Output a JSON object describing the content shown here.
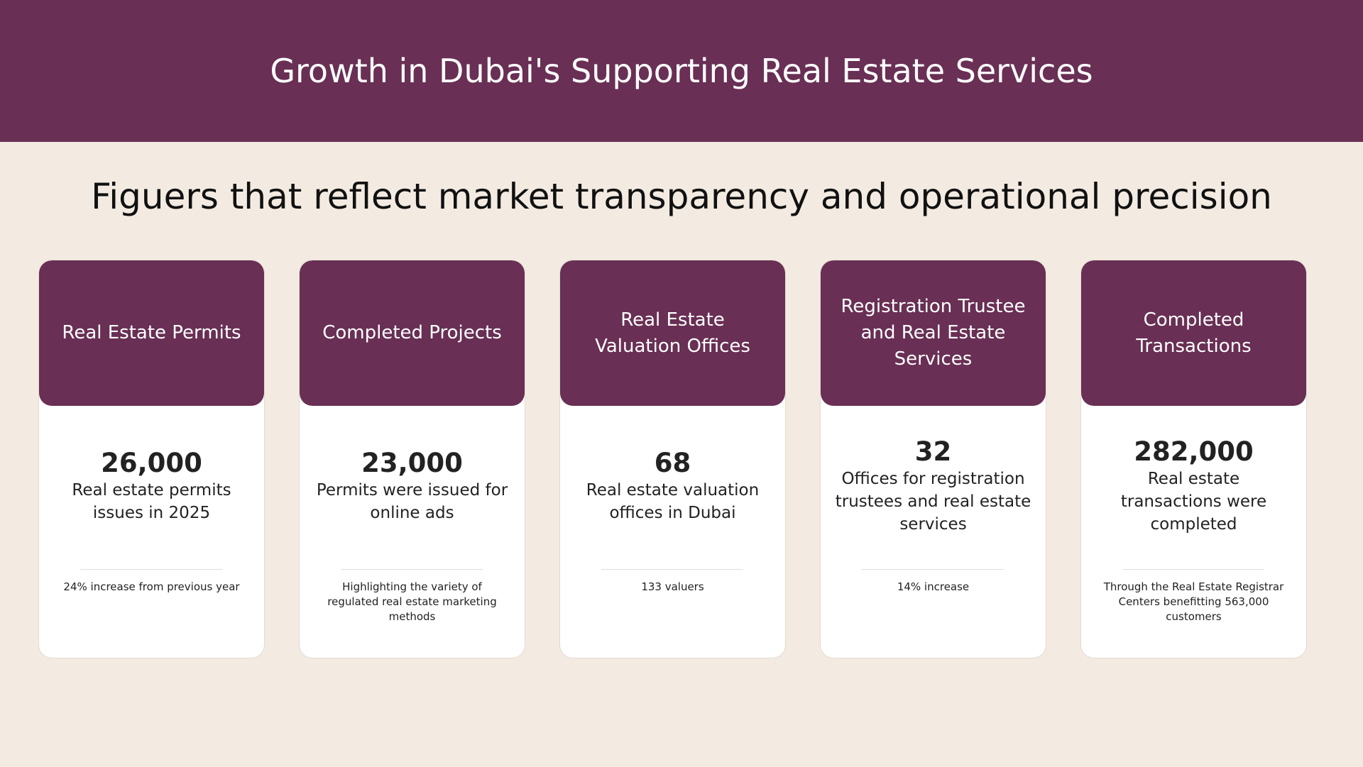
{
  "header": {
    "title": "Growth in Dubai's Supporting Real Estate Services"
  },
  "subtitle": "Figuers that reflect market transparency and operational precision",
  "cards": [
    {
      "title": "Real Estate Permits",
      "value": "26,000",
      "description": "Real estate permits issues in 2025",
      "note": "24% increase from previous year"
    },
    {
      "title": "Completed Projects",
      "value": "23,000",
      "description": "Permits were issued for online ads",
      "note": "Highlighting the variety of regulated real estate marketing methods"
    },
    {
      "title": "Real Estate Valuation Offices",
      "value": "68",
      "description": "Real estate valuation offices in Dubai",
      "note": "133 valuers"
    },
    {
      "title": "Registration Trustee and Real Estate Services",
      "value": "32",
      "description": "Offices for registration trustees and real estate services",
      "note": "14% increase"
    },
    {
      "title": "Completed Transactions",
      "value": "282,000",
      "description": "Real estate transactions were completed",
      "note": "Through the Real Estate Registrar Centers benefitting 563,000 customers"
    }
  ]
}
